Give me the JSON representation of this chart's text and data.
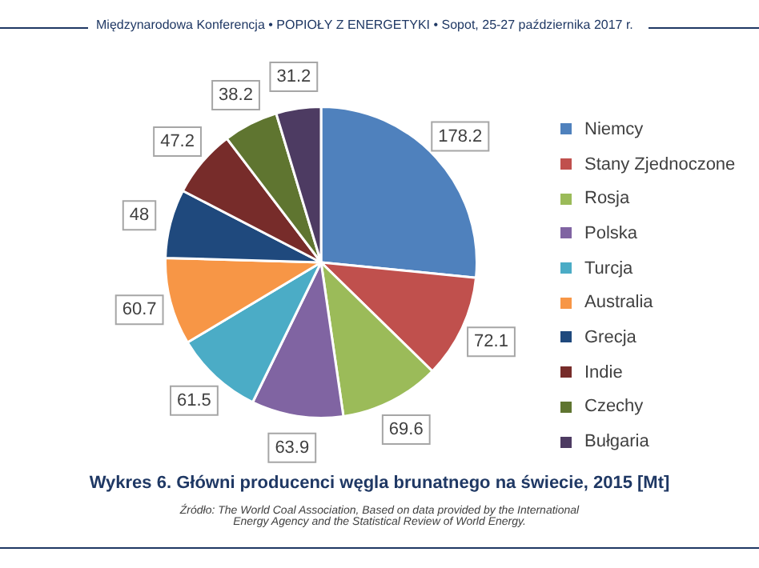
{
  "chart_data": {
    "type": "pie",
    "title": "Wykres 6. Główni producenci węgla brunatnego na świecie, 2015 [Mt]",
    "subtitle": "Międzynarodowa Konferencja • POPIOŁY Z ENERGETYKI • Sopot, 25-27 października 2017 r.",
    "annotations": [
      "Źródło: The World Coal Association, Based on data provided by the International Energy Agency and the Statistical Review of World Energy."
    ],
    "categories": [
      "Niemcy",
      "Stany Zjednoczone",
      "Rosja",
      "Polska",
      "Turcja",
      "Australia",
      "Grecja",
      "Indie",
      "Czechy",
      "Bułgaria"
    ],
    "values": [
      178.2,
      72.1,
      69.6,
      63.9,
      61.5,
      60.7,
      48,
      47.2,
      38.2,
      31.2
    ],
    "colors": [
      "#4f81bd",
      "#c0504d",
      "#9bbb59",
      "#8064a2",
      "#4bacc6",
      "#f79646",
      "#1f497d",
      "#772c2a",
      "#5f7530",
      "#4d3b62"
    ],
    "data_labels": true,
    "legend": "right"
  }
}
